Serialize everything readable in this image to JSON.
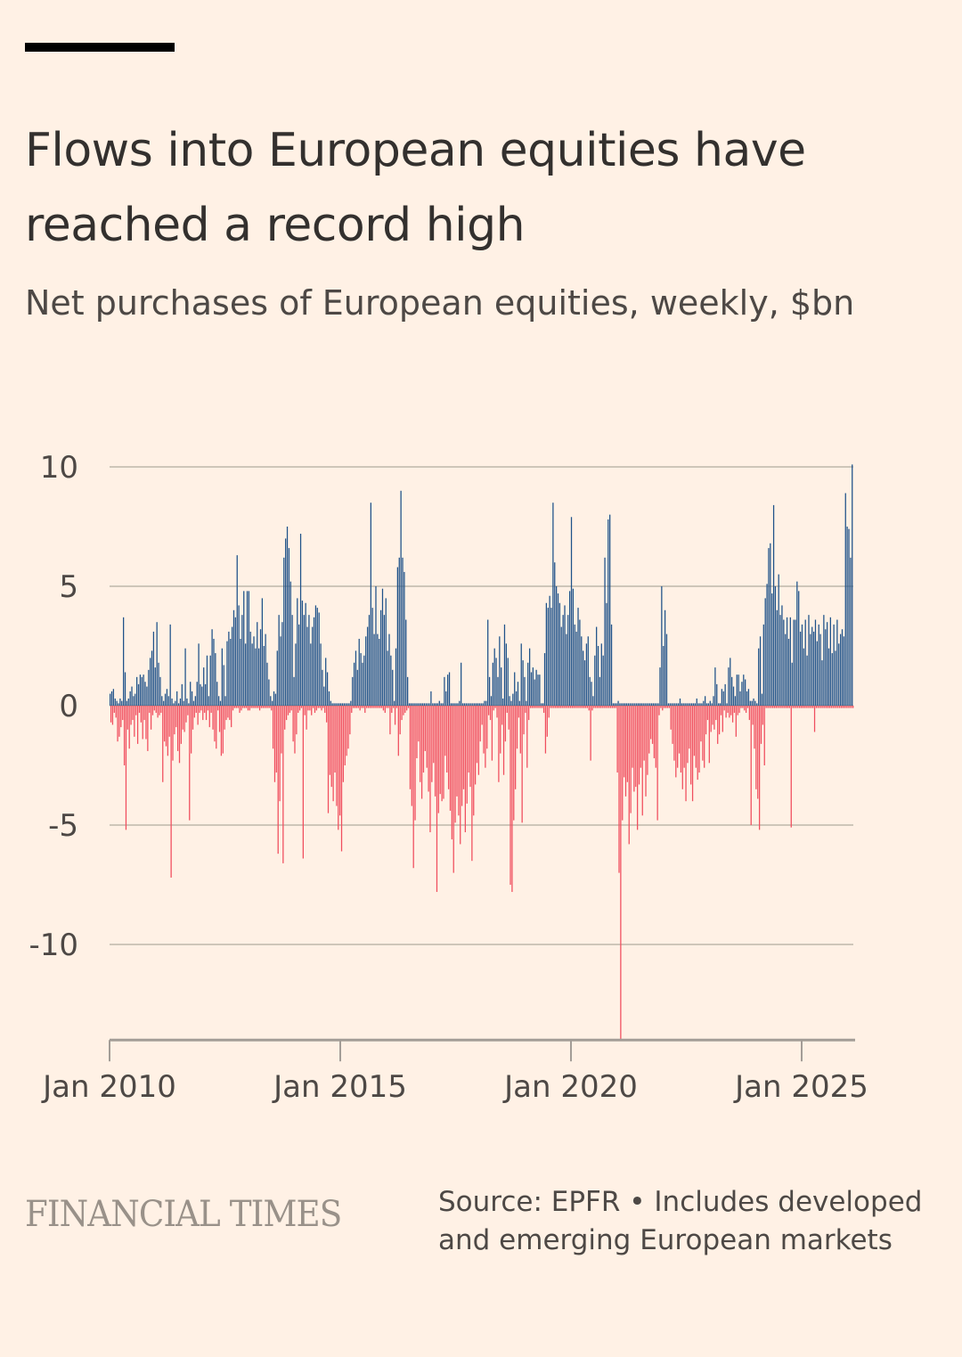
{
  "header": {
    "title": "Flows into European equities have reached a record high",
    "subtitle": "Net purchases of European equities, weekly, $bn"
  },
  "footer": {
    "brand": "FINANCIAL TIMES",
    "source_line1": "Source: EPFR • Includes developed",
    "source_line2": "and emerging European markets"
  },
  "colors": {
    "background": "#fff1e5",
    "positive": "#1f5289",
    "negative": "#f04e5e",
    "gridline": "#cec6b9",
    "axis": "#a39d97"
  },
  "chart_data": {
    "type": "bar",
    "title": "Flows into European equities have reached a record high",
    "subtitle": "Net purchases of European equities, weekly, $bn",
    "xlabel": "",
    "ylabel": "$bn",
    "frequency": "weekly",
    "x_start": "Jan 2010",
    "x_end": "Jun 2025",
    "x_ticks": [
      "Jan 2010",
      "Jan 2015",
      "Jan 2020",
      "Jan 2025"
    ],
    "x_tick_years": [
      2010,
      2015,
      2020,
      2025
    ],
    "y_ticks": [
      10,
      5,
      0,
      -5,
      -10
    ],
    "y_tick_labels": [
      "10",
      "5",
      "0",
      "-5",
      "-10"
    ],
    "ylim": [
      -14,
      10
    ],
    "grid": true,
    "legend": "none",
    "series": [
      {
        "name": "Net purchases",
        "positive_color": "#1f5289",
        "negative_color": "#f04e5e",
        "segments_note": "weekly values, Jan 2010 onward",
        "values": [
          0.5,
          -0.7,
          0.6,
          -0.8,
          0.7,
          -0.3,
          0.3,
          -0.5,
          0.2,
          -1.5,
          0.1,
          -1.3,
          0.3,
          -0.9,
          0.2,
          -0.6,
          3.7,
          -2.5,
          1.4,
          -5.2,
          0.2,
          -1.0,
          0.3,
          -1.8,
          0.6,
          -0.8,
          0.8,
          -0.6,
          0.4,
          -1.3,
          0.5,
          -0.4,
          1.2,
          -1.6,
          0.9,
          -0.3,
          1.3,
          -0.7,
          1.2,
          -1.4,
          1.3,
          -0.6,
          1.0,
          -1.4,
          0.8,
          -1.9,
          1.5,
          -0.3,
          2.0,
          -1.0,
          2.3,
          -0.4,
          3.1,
          -0.2,
          1.6,
          -0.3,
          3.5,
          -0.5,
          1.8,
          -0.4,
          1.2,
          -0.3,
          0.4,
          -3.2,
          0.2,
          -1.5,
          0.5,
          -1.7,
          0.7,
          -2.1,
          0.4,
          -1.3,
          3.4,
          -7.2,
          0.3,
          -2.3,
          0.1,
          -1.2,
          0.2,
          -0.9,
          0.6,
          -1.9,
          0.1,
          -2.4,
          0.3,
          -1.6,
          0.9,
          -1.0,
          0.2,
          -1.1,
          2.4,
          -0.7,
          0.3,
          -0.4,
          0.1,
          -4.8,
          1.0,
          -2.0,
          0.6,
          -1.0,
          0.2,
          -0.5,
          0.4,
          -0.3,
          1.0,
          -0.8,
          2.6,
          -0.3,
          0.9,
          -0.2,
          0.8,
          -0.6,
          1.6,
          -0.3,
          0.9,
          -0.6,
          2.1,
          -0.2,
          0.4,
          -0.9,
          2.1,
          -0.3,
          3.2,
          -1.0,
          2.8,
          -1.5,
          2.2,
          -1.8,
          1.0,
          -0.2,
          0.4,
          -1.1,
          0.2,
          -2.1,
          2.4,
          -2.0,
          1.7,
          -1.0,
          0.4,
          -0.6,
          2.7,
          -0.5,
          3.1,
          -0.6,
          2.8,
          -0.9,
          3.3,
          -0.2,
          4.0,
          -0.1,
          3.7,
          -0.1,
          6.3,
          -0.1,
          4.2,
          -0.3,
          2.8,
          -0.2,
          3.8,
          -0.1,
          4.8,
          -0.1,
          2.6,
          -0.1,
          4.8,
          -0.2,
          4.8,
          -0.2,
          3.1,
          -0.1,
          2.6,
          -0.1,
          2.9,
          -0.1,
          2.4,
          -0.1,
          3.5,
          -0.1,
          2.4,
          -0.2,
          3.2,
          -0.1,
          4.5,
          -0.1,
          2.5,
          -0.1,
          3.0,
          -0.1,
          1.8,
          -0.1,
          1.1,
          -0.1,
          0.4,
          -0.2,
          0.2,
          -1.8,
          0.6,
          -3.2,
          0.5,
          -2.8,
          2.3,
          -6.2,
          3.8,
          -4.0,
          2.9,
          -2.0,
          3.5,
          -6.6,
          6.2,
          -1.0,
          7.0,
          -0.6,
          7.5,
          -0.4,
          6.6,
          -0.3,
          5.2,
          -0.2,
          3.8,
          -1.5,
          1.2,
          -2.0,
          2.6,
          -1.2,
          4.5,
          -0.3,
          3.4,
          -0.2,
          7.2,
          -0.1,
          4.4,
          -6.4,
          3.8,
          -0.4,
          4.3,
          -1.0,
          3.3,
          -0.2,
          3.8,
          -0.2,
          2.6,
          -0.4,
          3.3,
          -0.1,
          3.7,
          -0.3,
          4.2,
          -0.2,
          4.1,
          -0.1,
          3.9,
          -0.1,
          2.6,
          -0.2,
          1.5,
          -0.1,
          0.8,
          -0.3,
          2.0,
          -0.7,
          1.4,
          -4.5,
          0.6,
          -2.9,
          0.2,
          -3.4,
          0.1,
          -4.0,
          0.1,
          -2.8,
          0.1,
          -4.2,
          0.1,
          -5.2,
          0.1,
          -4.6,
          0.1,
          -6.1,
          0.1,
          -3.2,
          0.1,
          -2.5,
          0.1,
          -2.1,
          0.1,
          -1.8,
          0.1,
          -1.2,
          0.2,
          -0.3,
          1.2,
          -0.1,
          1.8,
          -0.1,
          2.3,
          -0.1,
          1.5,
          -0.1,
          2.8,
          -0.2,
          2.2,
          -0.1,
          1.8,
          -0.1,
          2.1,
          -0.3,
          2.9,
          -0.1,
          3.3,
          -0.1,
          3.8,
          -0.1,
          8.5,
          -0.1,
          4.1,
          -0.1,
          3.0,
          -0.1,
          5.0,
          -0.1,
          3.0,
          -0.1,
          2.8,
          -0.1,
          4.0,
          -0.1,
          4.9,
          -0.2,
          3.8,
          -0.3,
          4.5,
          -0.1,
          2.3,
          -0.1,
          3.0,
          -1.2,
          2.1,
          -0.3,
          1.5,
          -0.1,
          0.2,
          -0.8,
          2.4,
          -0.1,
          5.8,
          -2.1,
          6.2,
          -1.2,
          9.0,
          -0.6,
          6.2,
          -0.4,
          5.6,
          -0.3,
          3.6,
          -0.2,
          1.2,
          -0.1,
          0.1,
          -3.5,
          0.1,
          -4.2,
          0.1,
          -6.8,
          0.1,
          -4.8,
          0.1,
          -2.2,
          0.1,
          -1.5,
          0.1,
          -3.2,
          0.1,
          -3.9,
          0.1,
          -2.8,
          0.1,
          -1.9,
          0.1,
          -2.6,
          0.1,
          -3.6,
          0.1,
          -5.3,
          0.6,
          -3.2,
          0.1,
          -2.4,
          0.1,
          -3.8,
          0.1,
          -7.8,
          0.1,
          -4.5,
          0.2,
          -3.7,
          0.1,
          -4.0,
          0.1,
          -3.9,
          1.2,
          -2.1,
          0.6,
          -2.8,
          1.3,
          -3.5,
          1.4,
          -4.4,
          0.1,
          -5.6,
          0.1,
          -7.0,
          0.1,
          -4.9,
          0.1,
          -3.8,
          0.1,
          -4.6,
          0.2,
          -5.8,
          1.8,
          -4.2,
          0.1,
          -3.5,
          0.1,
          -5.3,
          0.1,
          -4.1,
          0.1,
          -2.8,
          0.1,
          -3.4,
          0.1,
          -6.5,
          0.1,
          -4.6,
          0.1,
          -3.3,
          0.1,
          -2.4,
          0.1,
          -2.9,
          0.1,
          -1.5,
          0.1,
          -0.8,
          0.1,
          -2.0,
          0.2,
          -2.6,
          0.2,
          -1.8,
          3.6,
          -0.4,
          1.2,
          -0.6,
          0.4,
          -2.3,
          1.8,
          -0.2,
          2.4,
          -0.1,
          2.0,
          -0.5,
          1.2,
          -3.2,
          2.9,
          -2.0,
          1.6,
          -0.8,
          0.3,
          -2.9,
          3.4,
          -1.5,
          2.6,
          -0.3,
          2.0,
          -1.0,
          0.4,
          -7.5,
          0.2,
          -7.8,
          0.5,
          -4.8,
          1.4,
          -3.5,
          0.6,
          -1.8,
          1.0,
          -0.5,
          0.2,
          -2.0,
          2.6,
          -4.9,
          1.9,
          -1.2,
          1.2,
          -0.3,
          0.2,
          -2.6,
          1.8,
          -0.6,
          2.4,
          -0.1,
          1.4,
          -0.1,
          1.6,
          -0.1,
          1.1,
          -0.1,
          1.5,
          -0.1,
          1.3,
          -0.1,
          1.3,
          -0.1,
          0.1,
          -0.1,
          0.1,
          -0.3,
          2.2,
          -2.0,
          4.3,
          -1.3,
          4.1,
          -0.5,
          4.6,
          -0.1,
          4.1,
          -0.1,
          8.5,
          -0.1,
          6.0,
          -0.1,
          5.0,
          -0.1,
          4.7,
          -0.1,
          4.3,
          -0.1,
          3.3,
          -0.1,
          3.8,
          -0.1,
          4.2,
          -0.1,
          3.0,
          -0.1,
          3.8,
          -0.1,
          4.8,
          -0.1,
          7.9,
          -0.1,
          4.9,
          -0.1,
          3.4,
          -0.1,
          3.1,
          -0.1,
          4.1,
          -0.1,
          3.6,
          -0.1,
          2.9,
          -0.1,
          2.3,
          -0.1,
          1.9,
          -0.1,
          2.6,
          -0.1,
          2.9,
          -0.2,
          1.2,
          -2.3,
          1.0,
          -0.2,
          0.4,
          -0.1,
          2.1,
          -0.1,
          3.3,
          -0.1,
          2.5,
          -0.1,
          1.2,
          -0.1,
          2.6,
          -0.1,
          2.1,
          -0.1,
          6.2,
          -0.1,
          4.3,
          -0.1,
          7.8,
          -0.1,
          8.0,
          -0.1,
          3.4,
          -0.1,
          0.1,
          -0.1,
          0.1,
          -0.1,
          0.1,
          -2.8,
          0.2,
          -7.0,
          0.1,
          -14.0,
          0.1,
          -4.8,
          0.1,
          -3.0,
          0.1,
          -3.8,
          0.1,
          -3.2,
          0.1,
          -5.8,
          0.1,
          -4.5,
          0.1,
          -2.6,
          0.1,
          -3.6,
          0.1,
          -3.4,
          0.1,
          -5.2,
          0.1,
          -3.3,
          0.1,
          -2.6,
          0.1,
          -4.6,
          0.1,
          -2.3,
          0.1,
          -3.8,
          0.1,
          -2.9,
          0.1,
          -2.0,
          0.1,
          -1.4,
          0.1,
          -1.6,
          0.1,
          -2.2,
          0.1,
          -2.6,
          0.1,
          -4.8,
          0.1,
          -0.4,
          1.6,
          -0.1,
          5.0,
          -0.2,
          2.5,
          -0.1,
          4.0,
          -0.1,
          3.0,
          -0.1,
          0.1,
          -0.1,
          0.1,
          -1.0,
          0.1,
          -1.6,
          0.1,
          -2.3,
          0.1,
          -3.0,
          0.1,
          -2.6,
          0.1,
          -2.0,
          0.3,
          -2.8,
          0.1,
          -3.5,
          0.1,
          -2.6,
          0.1,
          -4.0,
          0.1,
          -2.4,
          0.1,
          -1.8,
          0.1,
          -3.3,
          0.1,
          -4.0,
          0.1,
          -2.1,
          0.1,
          -2.6,
          0.3,
          -3.1,
          0.1,
          -2.8,
          0.1,
          -1.5,
          0.1,
          -2.3,
          0.2,
          -2.6,
          0.4,
          -1.2,
          0.1,
          -0.6,
          0.1,
          -2.4,
          0.2,
          -1.1,
          0.1,
          -0.8,
          0.4,
          -1.0,
          1.6,
          -0.6,
          0.9,
          -1.6,
          0.1,
          -1.2,
          0.1,
          -0.4,
          0.7,
          -1.1,
          0.6,
          -0.2,
          0.9,
          -0.5,
          0.1,
          -0.3,
          1.6,
          -0.5,
          2.0,
          -0.4,
          1.2,
          -0.7,
          0.8,
          -0.3,
          0.4,
          -1.3,
          1.3,
          -0.4,
          1.3,
          -0.3,
          0.6,
          -0.1,
          1.0,
          -0.1,
          1.3,
          -0.2,
          1.1,
          -0.3,
          0.6,
          -0.1,
          0.7,
          -0.6,
          0.2,
          -5.0,
          0.2,
          -0.8,
          0.3,
          -1.8,
          0.2,
          -3.5,
          0.1,
          -3.9,
          2.4,
          -5.2,
          2.9,
          -1.6,
          0.5,
          -0.8,
          3.4,
          -2.5,
          4.5,
          -0.1,
          5.1,
          -0.1,
          6.6,
          -0.1,
          6.8,
          -0.1,
          4.7,
          -0.1,
          8.4,
          -0.1,
          5.0,
          -0.1,
          4.0,
          -0.1,
          5.5,
          -0.1,
          3.8,
          -0.1,
          4.2,
          -0.1,
          3.6,
          -0.1,
          3.0,
          -0.1,
          3.7,
          -0.1,
          2.8,
          -0.1,
          3.7,
          -5.1,
          1.8,
          -0.1,
          3.6,
          -0.1,
          3.6,
          -0.1,
          5.2,
          -0.1,
          4.8,
          -0.1,
          3.1,
          -0.1,
          3.4,
          -0.1,
          2.4,
          -0.1,
          3.6,
          -0.1,
          2.1,
          -0.1,
          3.8,
          -0.1,
          3.0,
          -0.1,
          3.3,
          -0.1,
          3.1,
          -1.1,
          3.6,
          -0.1,
          2.7,
          -0.1,
          3.4,
          -0.1,
          3.0,
          -0.1,
          1.9,
          -0.1,
          3.8,
          -0.1,
          3.2,
          -0.1,
          3.5,
          -0.1,
          2.4,
          -0.1,
          3.7,
          -0.1,
          2.2,
          -0.1,
          3.4,
          -0.1,
          2.3,
          -0.1,
          3.6,
          -0.1,
          2.6,
          -0.1,
          3.0,
          -0.1,
          3.2,
          -0.1,
          2.9,
          -0.1,
          8.9,
          -0.1,
          7.5,
          -0.1,
          7.4,
          -0.1,
          6.2,
          -0.1,
          10.1,
          -0.1
        ]
      }
    ]
  }
}
